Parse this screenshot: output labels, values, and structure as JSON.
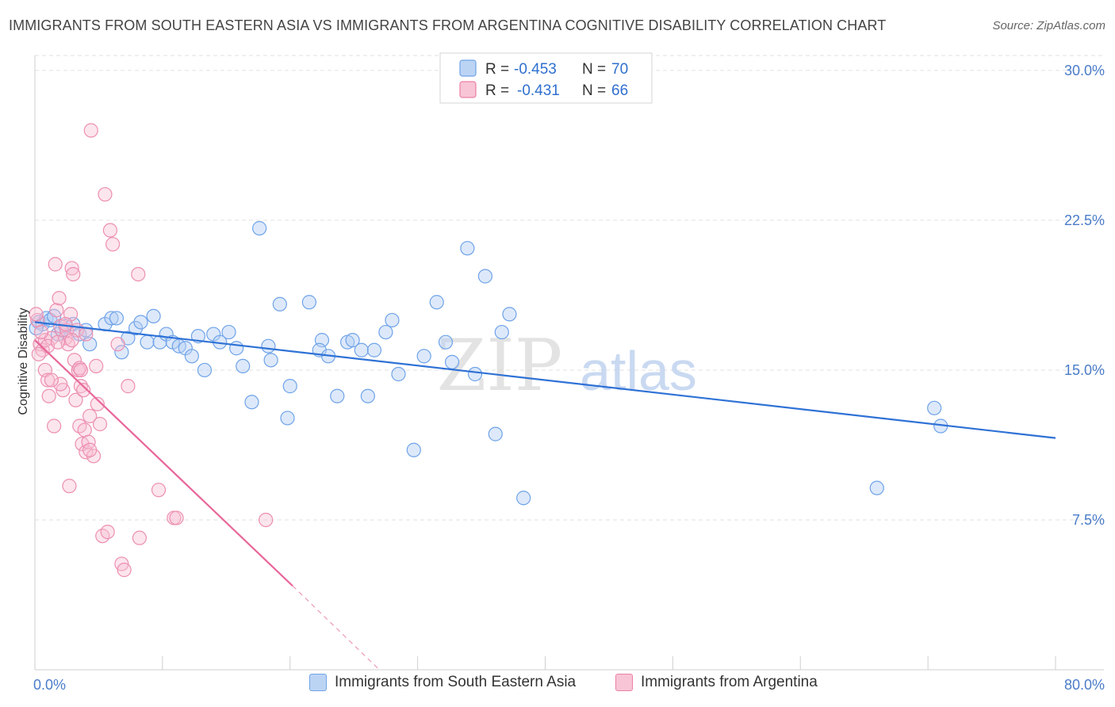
{
  "header": {
    "title": "IMMIGRANTS FROM SOUTH EASTERN ASIA VS IMMIGRANTS FROM ARGENTINA COGNITIVE DISABILITY CORRELATION CHART",
    "source": "Source: ZipAtlas.com"
  },
  "watermark": {
    "zip": "ZIP",
    "atlas": "atlas"
  },
  "legend": {
    "r_label": "R =",
    "n_label": "N =",
    "items": [
      {
        "r": "-0.453",
        "n": "70",
        "color": "#6fa3e8",
        "fill": "#bcd4f4"
      },
      {
        "r": "-0.431",
        "n": "66",
        "color": "#ec7fa6",
        "fill": "#f7c5d6"
      }
    ]
  },
  "bottom_legend": [
    "Immigrants from South Eastern Asia",
    "Immigrants from Argentina"
  ],
  "chart_data": {
    "type": "scatter",
    "title": "IMMIGRANTS FROM SOUTH EASTERN ASIA VS IMMIGRANTS FROM ARGENTINA COGNITIVE DISABILITY CORRELATION CHART",
    "ylabel": "Cognitive Disability",
    "xlim": [
      0,
      80
    ],
    "ylim": [
      0,
      30.75
    ],
    "x_tick_labels": [
      "0.0%",
      "80.0%"
    ],
    "y_ticks": [
      7.5,
      15.0,
      22.5,
      30.0
    ],
    "y_tick_labels": [
      "7.5%",
      "15.0%",
      "22.5%",
      "30.0%"
    ],
    "grid": true,
    "series": [
      {
        "name": "Immigrants from South Eastern Asia",
        "color": "#5b8fdc",
        "trend": {
          "x": [
            0,
            80
          ],
          "y": [
            17.4,
            11.6
          ]
        },
        "points": [
          [
            0.3,
            17.4
          ],
          [
            0.6,
            17.3
          ],
          [
            0.9,
            17.6
          ],
          [
            1.2,
            17.5
          ],
          [
            1.5,
            17.7
          ],
          [
            1.8,
            16.8
          ],
          [
            2.1,
            17.0
          ],
          [
            2.4,
            17.2
          ],
          [
            3.0,
            17.3
          ],
          [
            3.5,
            16.8
          ],
          [
            4.0,
            17.0
          ],
          [
            4.3,
            16.3
          ],
          [
            5.5,
            17.3
          ],
          [
            6.0,
            17.6
          ],
          [
            6.4,
            17.6
          ],
          [
            6.8,
            15.9
          ],
          [
            7.3,
            16.6
          ],
          [
            7.9,
            17.1
          ],
          [
            8.3,
            17.4
          ],
          [
            8.8,
            16.4
          ],
          [
            9.3,
            17.7
          ],
          [
            9.8,
            16.4
          ],
          [
            10.3,
            16.8
          ],
          [
            10.8,
            16.4
          ],
          [
            11.3,
            16.2
          ],
          [
            11.8,
            16.1
          ],
          [
            12.3,
            15.7
          ],
          [
            12.8,
            16.7
          ],
          [
            13.3,
            15.0
          ],
          [
            14.0,
            16.8
          ],
          [
            14.5,
            16.4
          ],
          [
            15.2,
            16.9
          ],
          [
            15.8,
            16.1
          ],
          [
            16.3,
            15.2
          ],
          [
            17.0,
            13.4
          ],
          [
            17.6,
            22.1
          ],
          [
            18.3,
            16.2
          ],
          [
            18.5,
            15.5
          ],
          [
            19.2,
            18.3
          ],
          [
            19.8,
            12.6
          ],
          [
            20.0,
            14.2
          ],
          [
            21.5,
            18.4
          ],
          [
            22.5,
            16.5
          ],
          [
            22.3,
            16.0
          ],
          [
            23.0,
            15.7
          ],
          [
            23.7,
            13.7
          ],
          [
            24.5,
            16.4
          ],
          [
            24.9,
            16.5
          ],
          [
            25.6,
            16.0
          ],
          [
            26.1,
            13.7
          ],
          [
            26.6,
            16.0
          ],
          [
            27.5,
            16.9
          ],
          [
            28.0,
            17.5
          ],
          [
            28.5,
            14.8
          ],
          [
            29.7,
            11.0
          ],
          [
            30.5,
            15.7
          ],
          [
            31.5,
            18.4
          ],
          [
            32.2,
            16.4
          ],
          [
            32.7,
            15.4
          ],
          [
            33.9,
            21.1
          ],
          [
            34.5,
            14.8
          ],
          [
            35.3,
            19.7
          ],
          [
            36.1,
            11.8
          ],
          [
            36.6,
            16.9
          ],
          [
            37.2,
            17.8
          ],
          [
            38.3,
            8.6
          ],
          [
            66.0,
            9.1
          ],
          [
            70.5,
            13.1
          ],
          [
            71.0,
            12.2
          ],
          [
            0.1,
            17.1
          ]
        ]
      },
      {
        "name": "Immigrants from Argentina",
        "color": "#ec7fa6",
        "trend": {
          "x": [
            0,
            20.2
          ],
          "y": [
            16.5,
            4.2
          ],
          "dashed_to": [
            27,
            0.0
          ]
        },
        "points": [
          [
            0.2,
            17.5
          ],
          [
            0.4,
            16.3
          ],
          [
            0.6,
            16.0
          ],
          [
            0.8,
            16.5
          ],
          [
            0.8,
            15.0
          ],
          [
            1.0,
            14.5
          ],
          [
            1.1,
            13.7
          ],
          [
            1.3,
            16.6
          ],
          [
            1.5,
            12.2
          ],
          [
            1.6,
            20.3
          ],
          [
            1.7,
            18.0
          ],
          [
            1.9,
            18.6
          ],
          [
            2.0,
            17.2
          ],
          [
            2.2,
            14.0
          ],
          [
            2.4,
            16.6
          ],
          [
            2.5,
            17.0
          ],
          [
            2.6,
            16.3
          ],
          [
            2.7,
            9.2
          ],
          [
            2.8,
            17.8
          ],
          [
            2.9,
            20.1
          ],
          [
            3.0,
            19.8
          ],
          [
            3.1,
            15.5
          ],
          [
            3.2,
            13.5
          ],
          [
            3.3,
            17.0
          ],
          [
            3.4,
            15.0
          ],
          [
            3.5,
            12.2
          ],
          [
            3.6,
            14.2
          ],
          [
            3.7,
            11.3
          ],
          [
            3.8,
            14.0
          ],
          [
            3.9,
            12.0
          ],
          [
            4.0,
            10.9
          ],
          [
            4.2,
            11.4
          ],
          [
            4.3,
            12.7
          ],
          [
            4.4,
            27.0
          ],
          [
            4.6,
            10.7
          ],
          [
            4.8,
            15.2
          ],
          [
            4.9,
            13.3
          ],
          [
            5.1,
            12.3
          ],
          [
            5.3,
            6.7
          ],
          [
            5.5,
            23.8
          ],
          [
            5.7,
            6.9
          ],
          [
            5.9,
            22.0
          ],
          [
            6.1,
            21.3
          ],
          [
            6.5,
            16.3
          ],
          [
            6.8,
            5.3
          ],
          [
            7.0,
            5.0
          ],
          [
            7.3,
            14.2
          ],
          [
            8.1,
            19.8
          ],
          [
            8.2,
            6.6
          ],
          [
            9.7,
            9.0
          ],
          [
            10.9,
            7.6
          ],
          [
            11.1,
            7.6
          ],
          [
            18.1,
            7.5
          ],
          [
            1.0,
            16.2
          ],
          [
            2.0,
            14.3
          ],
          [
            3.5,
            15.1
          ],
          [
            4.0,
            16.8
          ],
          [
            0.5,
            16.9
          ],
          [
            1.3,
            14.5
          ],
          [
            2.4,
            17.3
          ],
          [
            4.3,
            11.0
          ],
          [
            3.6,
            15.0
          ],
          [
            1.8,
            16.4
          ],
          [
            2.9,
            16.5
          ],
          [
            0.1,
            17.8
          ],
          [
            0.3,
            15.8
          ]
        ]
      }
    ]
  }
}
